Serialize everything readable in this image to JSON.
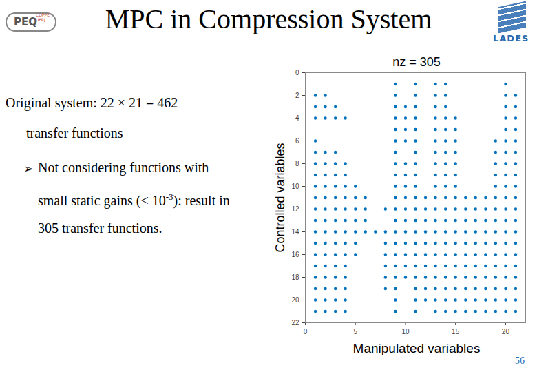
{
  "slide": {
    "title": "MPC in Compression System",
    "logo_left": {
      "text": "PEQ",
      "subtext": "COPPE UFRJ"
    },
    "logo_right": {
      "text": "LADES"
    },
    "page_number": "56",
    "text": {
      "line1": "Original system: 22 × 21 = 462",
      "line2": "transfer functions",
      "bullet": "➢",
      "bullet_line1": "Not considering functions with",
      "bullet_line2": {
        "before": "small static gains (< 10",
        "sup": "-3",
        "after": "): result in"
      },
      "bullet_line3": "305 transfer functions."
    }
  },
  "chart_data": {
    "type": "scatter",
    "title": "nz = 305",
    "x_label": "Manipulated variables",
    "y_label": "Controlled variables",
    "xlim": [
      0,
      22
    ],
    "ylim": [
      0,
      22
    ],
    "xticks": [
      0,
      5,
      10,
      15,
      20
    ],
    "yticks": [
      0,
      2,
      4,
      6,
      8,
      10,
      12,
      14,
      16,
      18,
      20,
      22
    ],
    "y_reversed": true,
    "color": "#0072bd",
    "marker": "dot",
    "grid": false,
    "nonzeros": [
      {
        "row": 1,
        "columns": [
          9,
          11,
          13,
          14,
          20
        ]
      },
      {
        "row": 2,
        "columns": [
          1,
          2,
          9,
          11,
          13,
          14,
          20,
          21
        ]
      },
      {
        "row": 3,
        "columns": [
          1,
          2,
          3,
          9,
          10,
          11,
          13,
          14,
          20,
          21
        ]
      },
      {
        "row": 4,
        "columns": [
          1,
          2,
          3,
          4,
          9,
          10,
          11,
          13,
          14,
          15,
          20,
          21
        ]
      },
      {
        "row": 5,
        "columns": [
          9,
          10,
          11,
          13,
          14,
          15,
          20,
          21
        ]
      },
      {
        "row": 6,
        "columns": [
          1,
          9,
          10,
          11,
          13,
          14,
          15,
          19,
          20,
          21
        ]
      },
      {
        "row": 7,
        "columns": [
          1,
          2,
          3,
          9,
          11,
          13,
          14,
          15,
          19,
          20,
          21
        ]
      },
      {
        "row": 8,
        "columns": [
          1,
          2,
          3,
          4,
          9,
          10,
          11,
          13,
          14,
          15,
          19,
          20,
          21
        ]
      },
      {
        "row": 9,
        "columns": [
          1,
          2,
          3,
          4,
          9,
          10,
          11,
          13,
          14,
          15,
          19,
          20,
          21
        ]
      },
      {
        "row": 10,
        "columns": [
          1,
          2,
          3,
          4,
          5,
          9,
          10,
          11,
          13,
          14,
          15,
          19,
          20,
          21
        ]
      },
      {
        "row": 11,
        "columns": [
          1,
          2,
          3,
          4,
          5,
          6,
          9,
          10,
          11,
          12,
          13,
          14,
          15,
          16,
          17,
          18,
          19,
          20,
          21
        ]
      },
      {
        "row": 12,
        "columns": [
          1,
          2,
          3,
          4,
          5,
          6,
          8,
          9,
          10,
          11,
          12,
          13,
          14,
          15,
          16,
          17,
          18,
          19,
          20,
          21
        ]
      },
      {
        "row": 13,
        "columns": [
          1,
          2,
          3,
          4,
          5,
          6,
          9,
          10,
          11,
          12,
          13,
          14,
          15,
          16,
          17,
          18,
          19,
          20,
          21
        ]
      },
      {
        "row": 14,
        "columns": [
          1,
          2,
          3,
          4,
          5,
          6,
          7,
          8,
          9,
          10,
          11,
          12,
          13,
          14,
          15,
          16,
          17,
          18,
          19,
          20,
          21
        ]
      },
      {
        "row": 15,
        "columns": [
          1,
          2,
          3,
          4,
          5,
          8,
          9,
          10,
          11,
          12,
          13,
          14,
          15,
          16,
          17,
          18,
          19,
          20,
          21
        ]
      },
      {
        "row": 16,
        "columns": [
          1,
          2,
          3,
          4,
          5,
          8,
          9,
          10,
          11,
          12,
          13,
          14,
          15,
          16,
          17,
          18,
          19,
          20,
          21
        ]
      },
      {
        "row": 17,
        "columns": [
          1,
          2,
          3,
          4,
          8,
          9,
          10,
          11,
          12,
          13,
          14,
          15,
          16,
          17,
          18,
          19,
          20,
          21
        ]
      },
      {
        "row": 18,
        "columns": [
          1,
          2,
          3,
          4,
          8,
          9,
          10,
          11,
          12,
          13,
          14,
          15,
          16,
          17,
          18,
          19,
          20,
          21
        ]
      },
      {
        "row": 19,
        "columns": [
          1,
          2,
          3,
          4,
          8,
          9,
          11,
          12,
          13,
          14,
          15,
          16,
          17,
          18,
          19,
          20,
          21
        ]
      },
      {
        "row": 20,
        "columns": [
          1,
          2,
          3,
          4,
          9,
          11,
          12,
          13,
          14,
          15,
          16,
          17,
          18,
          19,
          20,
          21
        ]
      },
      {
        "row": 21,
        "columns": [
          1,
          2,
          3,
          4,
          9,
          11,
          13,
          14,
          15,
          16,
          17,
          18,
          19,
          20,
          21
        ]
      }
    ]
  }
}
